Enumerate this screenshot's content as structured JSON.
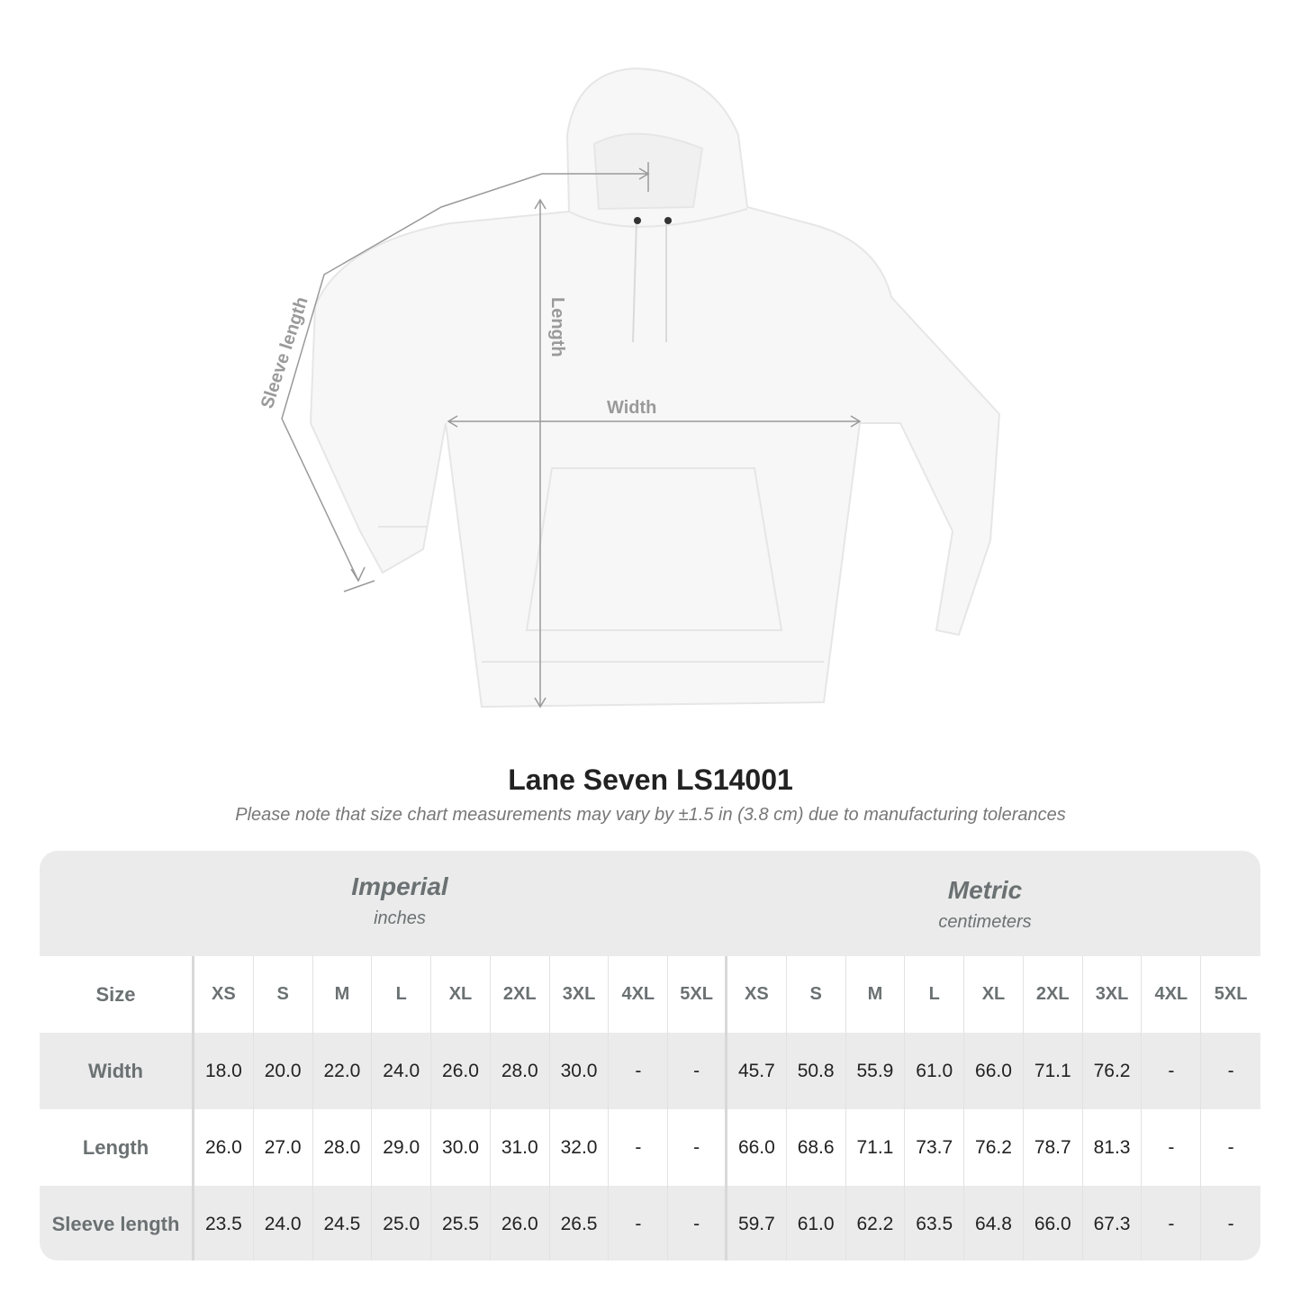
{
  "illustration": {
    "labels": {
      "sleeve": "Sleeve length",
      "length": "Length",
      "width": "Width"
    },
    "colors": {
      "garment": "#f7f7f7",
      "measure_line": "#9a9a9a"
    }
  },
  "title": "Lane Seven LS14001",
  "subtitle": "Please note that size chart measurements may vary by ±1.5 in (3.8 cm) due to manufacturing tolerances",
  "table": {
    "imperial": {
      "name": "Imperial",
      "unit": "inches"
    },
    "metric": {
      "name": "Metric",
      "unit": "centimeters"
    },
    "size_label": "Size",
    "sizes": [
      "XS",
      "S",
      "M",
      "L",
      "XL",
      "2XL",
      "3XL",
      "4XL",
      "5XL"
    ],
    "rows": [
      {
        "label": "Width",
        "imperial": [
          "18.0",
          "20.0",
          "22.0",
          "24.0",
          "26.0",
          "28.0",
          "30.0",
          "-",
          "-"
        ],
        "metric": [
          "45.7",
          "50.8",
          "55.9",
          "61.0",
          "66.0",
          "71.1",
          "76.2",
          "-",
          "-"
        ]
      },
      {
        "label": "Length",
        "imperial": [
          "26.0",
          "27.0",
          "28.0",
          "29.0",
          "30.0",
          "31.0",
          "32.0",
          "-",
          "-"
        ],
        "metric": [
          "66.0",
          "68.6",
          "71.1",
          "73.7",
          "76.2",
          "78.7",
          "81.3",
          "-",
          "-"
        ]
      },
      {
        "label": "Sleeve length",
        "imperial": [
          "23.5",
          "24.0",
          "24.5",
          "25.0",
          "25.5",
          "26.0",
          "26.5",
          "-",
          "-"
        ],
        "metric": [
          "59.7",
          "61.0",
          "62.2",
          "63.5",
          "64.8",
          "66.0",
          "67.3",
          "-",
          "-"
        ]
      }
    ],
    "colors": {
      "band": "#ebebeb",
      "header_text": "#6b7172"
    }
  }
}
